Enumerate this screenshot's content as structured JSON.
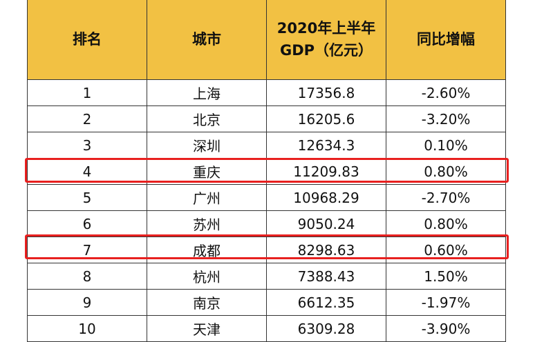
{
  "chart_data": {
    "type": "table",
    "columns": [
      "排名",
      "城市",
      "2020年上半年GDP（亿元）",
      "同比增幅"
    ],
    "rows": [
      [
        "1",
        "上海",
        "17356.8",
        "-2.60%"
      ],
      [
        "2",
        "北京",
        "16205.6",
        "-3.20%"
      ],
      [
        "3",
        "深圳",
        "12634.3",
        "0.10%"
      ],
      [
        "4",
        "重庆",
        "11209.83",
        "0.80%"
      ],
      [
        "5",
        "广州",
        "10968.29",
        "-2.70%"
      ],
      [
        "6",
        "苏州",
        "9050.24",
        "0.80%"
      ],
      [
        "7",
        "成都",
        "8298.63",
        "0.60%"
      ],
      [
        "8",
        "杭州",
        "7388.43",
        "1.50%"
      ],
      [
        "9",
        "南京",
        "6612.35",
        "-1.97%"
      ],
      [
        "10",
        "天津",
        "6309.28",
        "-3.90%"
      ]
    ],
    "highlighted_rows": [
      "4",
      "7"
    ],
    "colors": {
      "header": "#f2c143",
      "highlight": "#e8201f"
    }
  }
}
